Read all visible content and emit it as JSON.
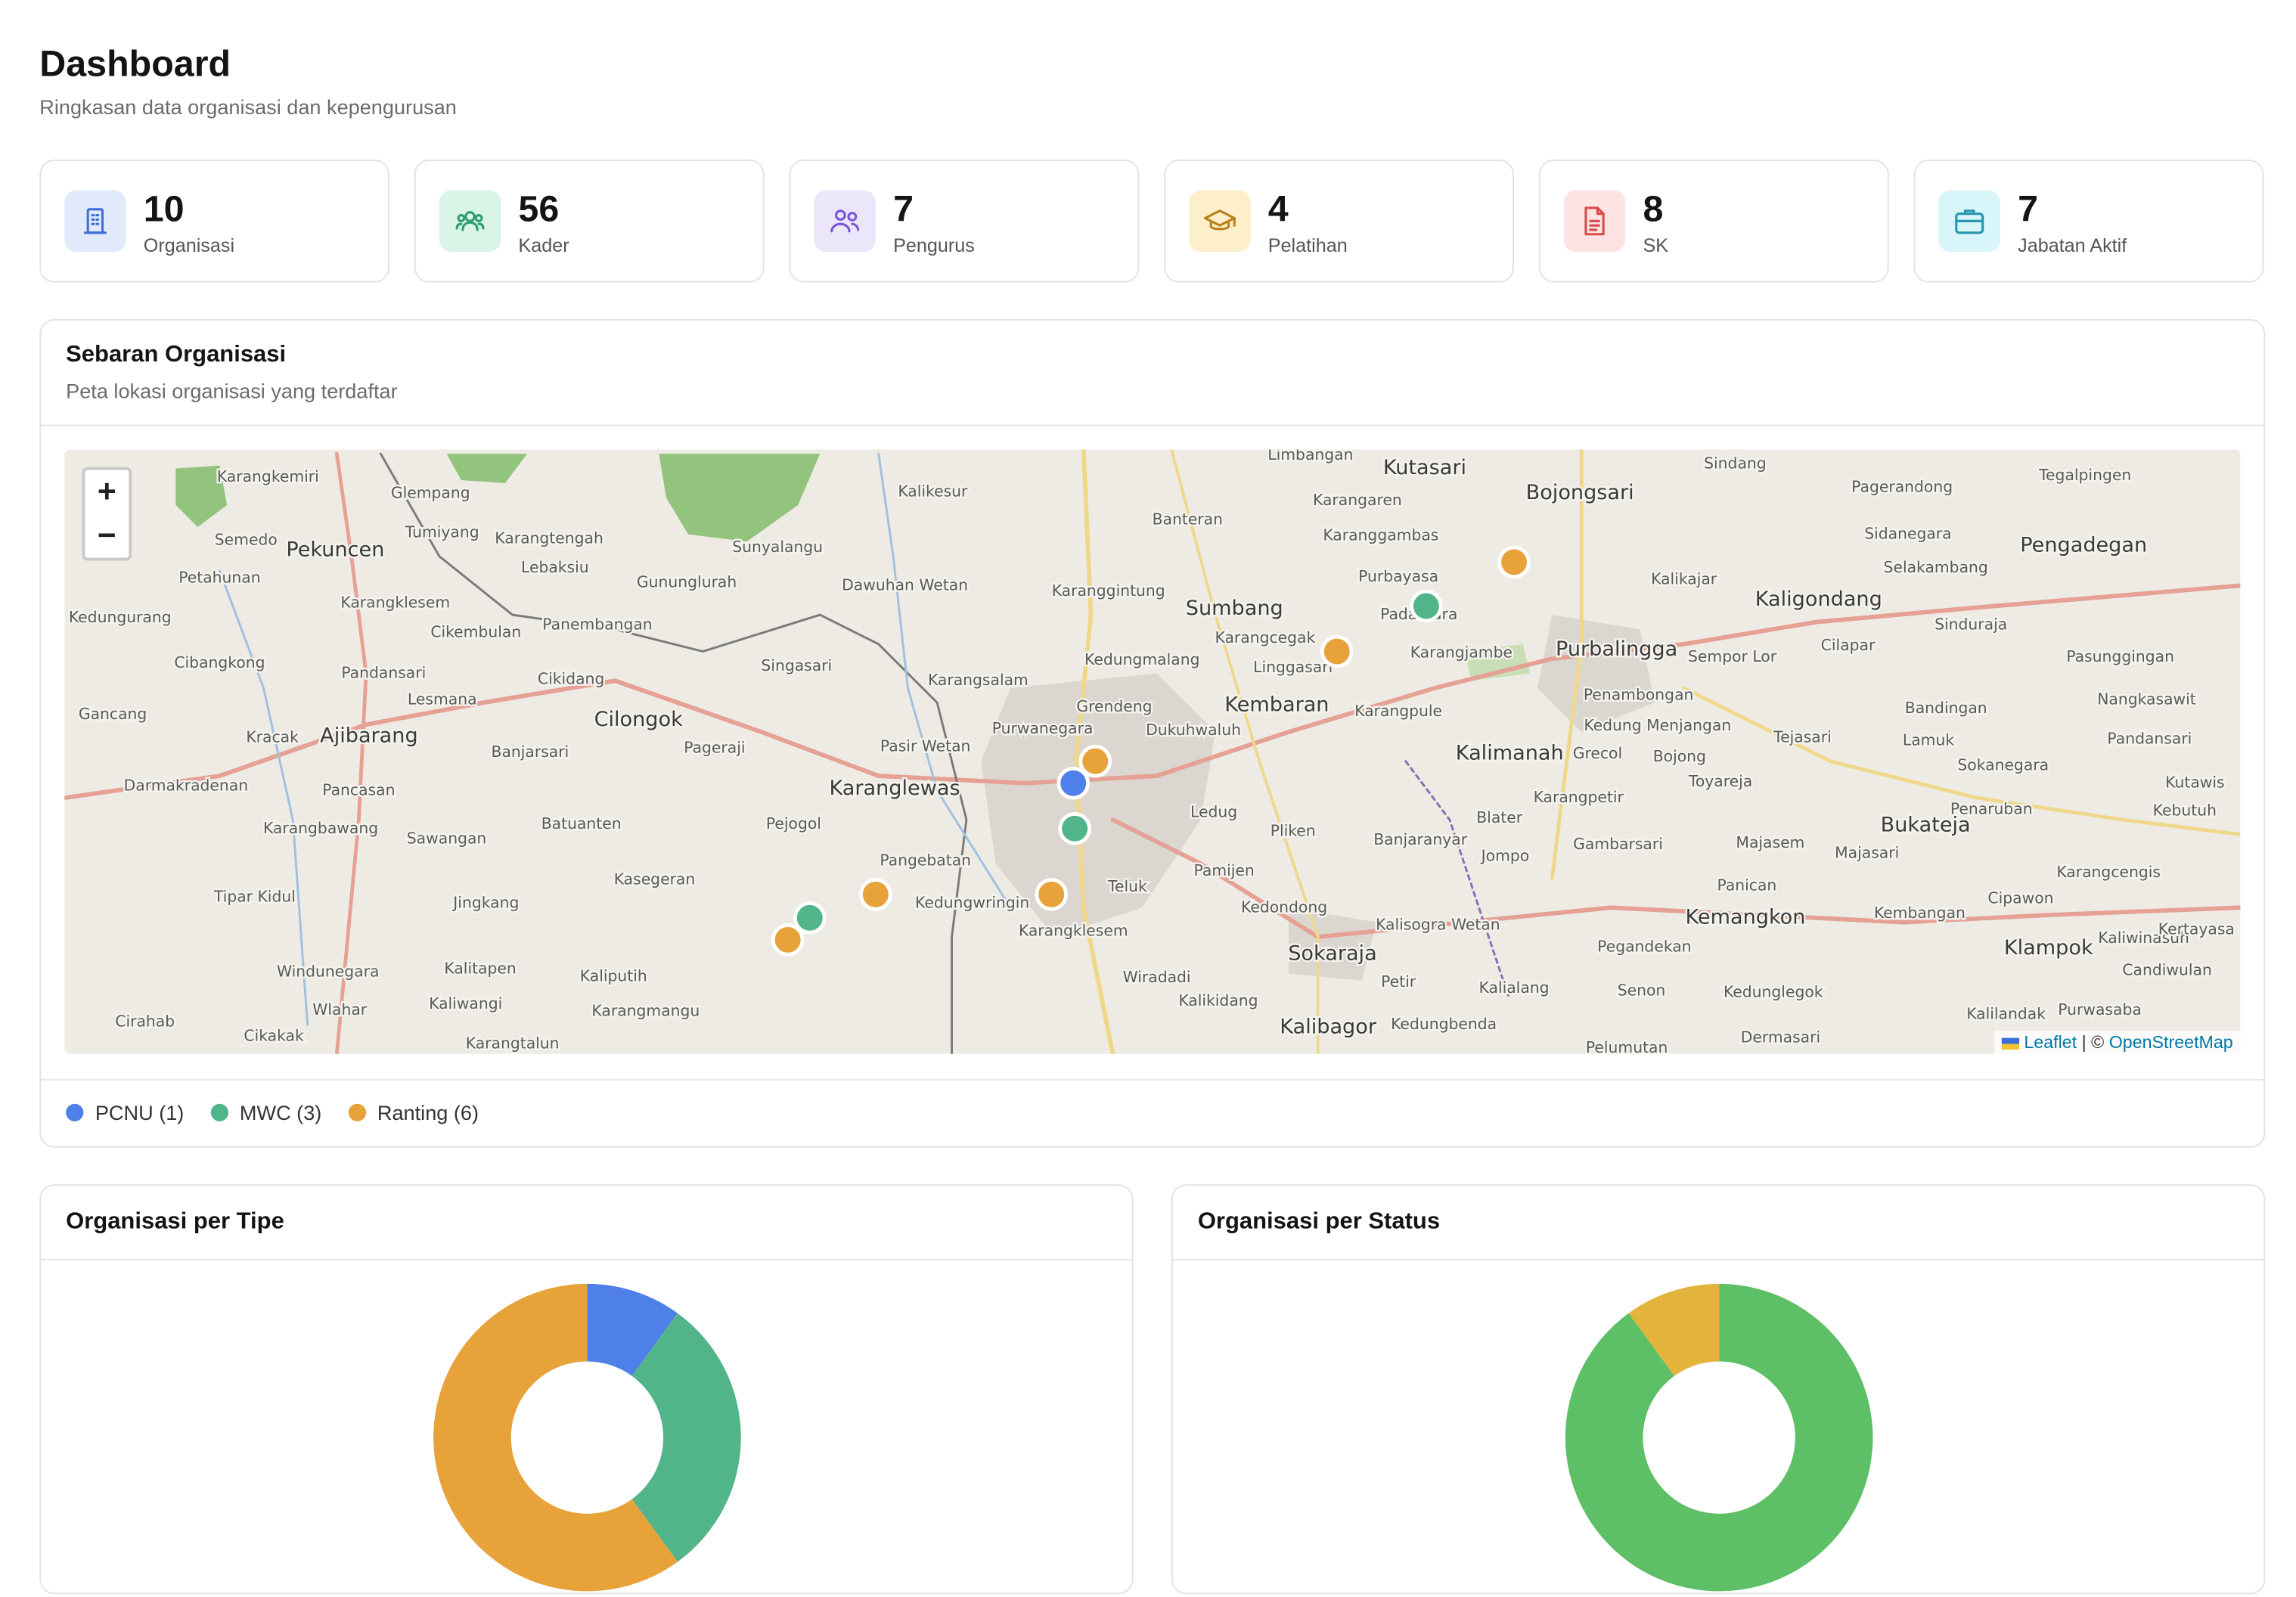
{
  "header": {
    "title": "Dashboard",
    "subtitle": "Ringkasan data organisasi dan kepengurusan"
  },
  "stats": [
    {
      "value": 10,
      "label": "Organisasi",
      "color": "#3b6fd8",
      "bg": "#e1e9fb"
    },
    {
      "value": 56,
      "label": "Kader",
      "color": "#2f9e6e",
      "bg": "#daf5e8"
    },
    {
      "value": 7,
      "label": "Pengurus",
      "color": "#7b55d6",
      "bg": "#ece6fb"
    },
    {
      "value": 4,
      "label": "Pelatihan",
      "color": "#b9801a",
      "bg": "#fcefc9"
    },
    {
      "value": 8,
      "label": "SK",
      "color": "#d94b4b",
      "bg": "#fde3e3"
    },
    {
      "value": 7,
      "label": "Jabatan Aktif",
      "color": "#2496ad",
      "bg": "#d8f5f9"
    }
  ],
  "map": {
    "title": "Sebaran Organisasi",
    "subtitle": "Peta lokasi organisasi yang terdaftar",
    "zoom_in": "+",
    "zoom_out": "−",
    "places": [
      "Karangkemiri",
      "Glempang",
      "Kalikesur",
      "Banteran",
      "Limbangan",
      "Kutasari",
      "Bojongsari",
      "Sindang",
      "Pagerandong",
      "Tegalpingen",
      "Semedo",
      "Pekuncen",
      "Tumiyang",
      "Karangtengah",
      "Sunyalangu",
      "Karangaren",
      "Karanggambas",
      "Sidanegara",
      "Pengadegan",
      "Petahunan",
      "Lebaksiu",
      "Gununglurah",
      "Dawuhan Wetan",
      "Karanggintung",
      "Sumbang",
      "Purbayasa",
      "Kalikajar",
      "Selakambang",
      "Kedungurang",
      "Karangklesem",
      "Kaligondang",
      "Panembangan",
      "Cikembulan",
      "Purbalingga",
      "Cibangkong",
      "Pandansari",
      "Singasari",
      "Karangsalam",
      "Kembaran",
      "Cilongok",
      "Ajibarang",
      "Kalimanah",
      "Karanglewas",
      "Sokaraja",
      "Kemangkon",
      "Klampok",
      "Bukateja",
      "Kalibagor",
      "Darmakradenan",
      "Sawangan",
      "Kasegeran",
      "Kalitapen",
      "Wiradadi",
      "Cirahab",
      "Cikakak",
      "Karangtalun",
      "Pangebatan",
      "Teluk",
      "Karangklesem",
      "Pliken",
      "Ledug",
      "Bandingan",
      "Kutawis",
      "Dukuhwaluh",
      "Kedungmalang",
      "Grendeng",
      "Purwanegara",
      "Pasir Wetan",
      "Pejogol",
      "Kedungwringin",
      "Banjaranyar",
      "Gambarsari",
      "Majasem",
      "Penaruban",
      "Kalisogra Wetan",
      "Pamijen",
      "Kedondong",
      "Senon",
      "Kedunglegok",
      "Purwasaba",
      "Kalilandak",
      "Kaliwangi",
      "Karangmangu",
      "Kaliputih",
      "Jingkang",
      "Batuanten",
      "Banjarsari",
      "Pageraji",
      "Lesmana",
      "Cikidang",
      "Gancang",
      "Kracak",
      "Pancasan",
      "Karangbawang",
      "Tipar Kidul",
      "Windunegara",
      "Wlahar",
      "Pegandekan",
      "Kalialang",
      "Kedungbenda",
      "Dermasari",
      "Pelumutan",
      "Karangcengis",
      "Cipawon",
      "Kembangan",
      "Kaliwinasuh",
      "Candiwulan",
      "Kertayasa",
      "Sokanegara",
      "Kebutuh",
      "Lamuk",
      "Tejasari",
      "Toyareja",
      "Bojong",
      "Grecol",
      "Penambongan",
      "Sempor Lor",
      "Cilapar",
      "Sinduraja",
      "Pasunggingan",
      "Nangkasawit",
      "Pandansari",
      "Kedung Menjangan",
      "Jompo",
      "Blater",
      "Karangpetir",
      "Karangjambe",
      "Karangpule",
      "Linggasari",
      "Karangcegak",
      "Padamara",
      "Kalikidang",
      "Petir",
      "Panican",
      "Majasari"
    ],
    "attribution": {
      "leaflet": "Leaflet",
      "separator": "| ©",
      "osm": "OpenStreetMap"
    },
    "legend": [
      {
        "label": "PCNU (1)",
        "color": "#4f7fe8"
      },
      {
        "label": "MWC (3)",
        "color": "#52b589"
      },
      {
        "label": "Ranting (6)",
        "color": "#e8a23a"
      }
    ]
  },
  "chart_data": [
    {
      "type": "donut",
      "title": "Organisasi per Tipe",
      "values": [
        1,
        3,
        6
      ],
      "colors": [
        "#4f7fe8",
        "#52b589",
        "#e8a23a"
      ]
    },
    {
      "type": "donut",
      "title": "Organisasi per Status",
      "values": [
        9,
        1
      ],
      "colors": [
        "#5dbf66",
        "#e2b43c"
      ]
    }
  ]
}
